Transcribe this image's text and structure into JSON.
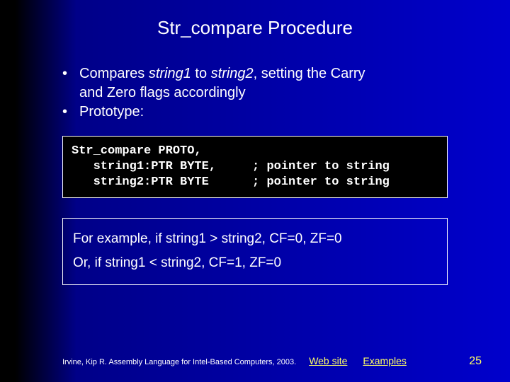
{
  "title": "Str_compare Procedure",
  "bullets": {
    "b1_pre": "Compares ",
    "b1_s1": "string1",
    "b1_mid": " to ",
    "b1_s2": "string2",
    "b1_post": ", setting the Carry",
    "b1_line2": "and Zero flags accordingly",
    "b2": "Prototype:"
  },
  "code": "Str_compare PROTO,\n   string1:PTR BYTE,     ; pointer to string\n   string2:PTR BYTE      ; pointer to string",
  "example": {
    "line1": "For example, if string1 > string2, CF=0, ZF=0",
    "line2": "Or, if string1 < string2, CF=1, ZF=0"
  },
  "footer": {
    "citation": "Irvine, Kip R. Assembly Language for Intel-Based Computers, 2003.",
    "link1": "Web site",
    "link2": "Examples",
    "page": "25"
  }
}
